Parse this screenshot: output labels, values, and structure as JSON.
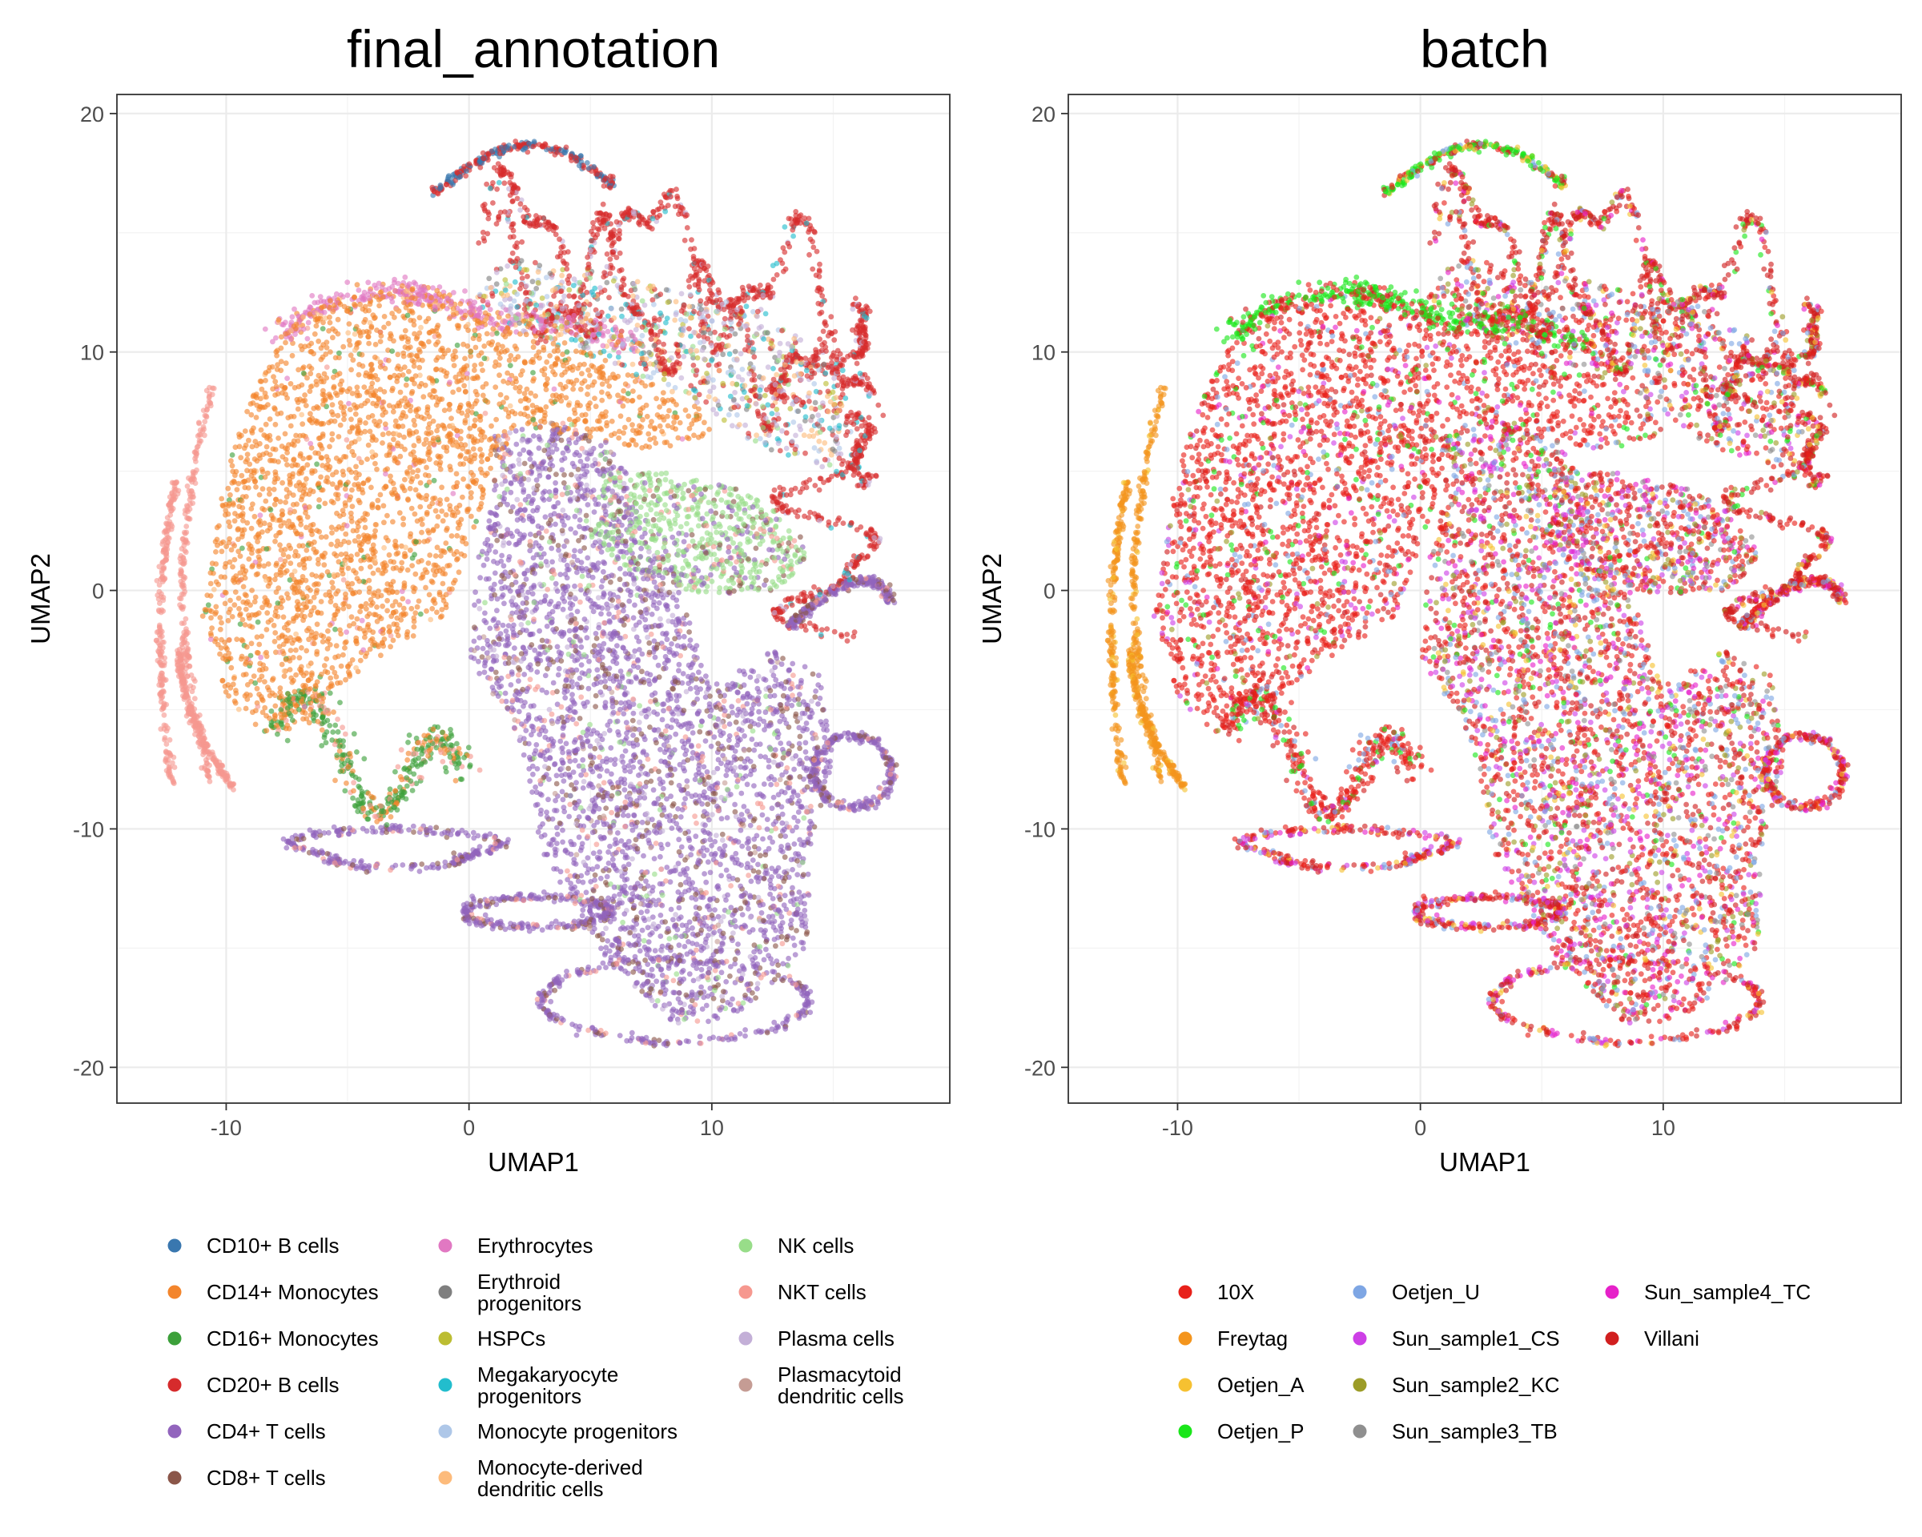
{
  "chart_data": [
    {
      "type": "scatter",
      "title": "final_annotation",
      "xlabel": "UMAP1",
      "ylabel": "UMAP2",
      "xlim": [
        -14.5,
        19.8
      ],
      "ylim": [
        -21.5,
        20.8
      ],
      "xticks": [
        -10,
        0,
        10
      ],
      "yticks": [
        -20,
        -10,
        0,
        10,
        20
      ],
      "grid": true,
      "legend_position": "bottom",
      "legend": [
        {
          "label": "CD10+ B cells",
          "color": "#3977af"
        },
        {
          "label": "CD14+ Monocytes",
          "color": "#f3852c"
        },
        {
          "label": "CD16+ Monocytes",
          "color": "#3ca03a"
        },
        {
          "label": "CD20+ B cells",
          "color": "#d62b2c"
        },
        {
          "label": "CD4+ T cells",
          "color": "#9264bd"
        },
        {
          "label": "CD8+ T cells",
          "color": "#8b5649"
        },
        {
          "label": "Erythrocytes",
          "color": "#e178c2"
        },
        {
          "label": "Erythroid progenitors",
          "color": "#7f7f7f"
        },
        {
          "label": "HSPCs",
          "color": "#bcbd32"
        },
        {
          "label": "Megakaryocyte progenitors",
          "color": "#22bdcd"
        },
        {
          "label": "Monocyte progenitors",
          "color": "#aec7e8"
        },
        {
          "label": "Monocyte-derived dendritic cells",
          "color": "#fdbb7b"
        },
        {
          "label": "NK cells",
          "color": "#98dd89"
        },
        {
          "label": "NKT cells",
          "color": "#f6988f"
        },
        {
          "label": "Plasma cells",
          "color": "#c3afd7"
        },
        {
          "label": "Plasmacytoid dendritic cells",
          "color": "#c59c94"
        }
      ],
      "clusters": [
        {
          "region": "CD14+ monocyte body",
          "x_range": [
            -11,
            3
          ],
          "y_range": [
            -6.5,
            12
          ],
          "dominant": "CD14+ Monocytes"
        },
        {
          "region": "erythrocyte rim",
          "x_range": [
            -9,
            -1
          ],
          "y_range": [
            8,
            12.8
          ],
          "dominant": "Erythrocytes"
        },
        {
          "region": "CD16+ monocyte loop",
          "x_range": [
            -9,
            -0.5
          ],
          "y_range": [
            -8.5,
            -4
          ],
          "dominant": "CD16+ Monocytes"
        },
        {
          "region": "NKT cell streaks",
          "x_range": [
            -13,
            -10.5
          ],
          "y_range": [
            -8,
            8.5
          ],
          "dominant": "NKT cells"
        },
        {
          "region": "B cell loops",
          "x_range": [
            -1.5,
            17
          ],
          "y_range": [
            4,
            18.8
          ],
          "dominant": "CD20+ B cells"
        },
        {
          "region": "CD10+ B cell arc",
          "x_range": [
            0,
            6.5
          ],
          "y_range": [
            15,
            18.8
          ],
          "dominant": "CD10+ B cells"
        },
        {
          "region": "T cell mass",
          "x_range": [
            0,
            15
          ],
          "y_range": [
            -19.5,
            7
          ],
          "dominant": "CD4+ T cells"
        },
        {
          "region": "NK cell lobe",
          "x_range": [
            6,
            14
          ],
          "y_range": [
            0,
            5
          ],
          "dominant": "NK cells"
        }
      ]
    },
    {
      "type": "scatter",
      "title": "batch",
      "xlabel": "UMAP1",
      "ylabel": "UMAP2",
      "xlim": [
        -14.5,
        19.8
      ],
      "ylim": [
        -21.5,
        20.8
      ],
      "xticks": [
        -10,
        0,
        10
      ],
      "yticks": [
        -20,
        -10,
        0,
        10,
        20
      ],
      "grid": true,
      "legend_position": "bottom",
      "legend": [
        {
          "label": "10X",
          "color": "#e8201a"
        },
        {
          "label": "Freytag",
          "color": "#f4951d"
        },
        {
          "label": "Oetjen_A",
          "color": "#f6c131"
        },
        {
          "label": "Oetjen_P",
          "color": "#1ae61a"
        },
        {
          "label": "Oetjen_U",
          "color": "#7ea6e4"
        },
        {
          "label": "Sun_sample1_CS",
          "color": "#cd3fe6"
        },
        {
          "label": "Sun_sample2_KC",
          "color": "#9c9c27"
        },
        {
          "label": "Sun_sample3_TB",
          "color": "#8f8f8f"
        },
        {
          "label": "Sun_sample4_TC",
          "color": "#e621c9"
        },
        {
          "label": "Villani",
          "color": "#d11f1f"
        }
      ],
      "clusters": [
        {
          "region": "monocyte body",
          "x_range": [
            -11,
            3
          ],
          "y_range": [
            -6.5,
            12
          ],
          "dominant": "10X"
        },
        {
          "region": "upper rim",
          "x_range": [
            -9,
            8
          ],
          "y_range": [
            8,
            12.8
          ],
          "dominant": "Oetjen_P"
        },
        {
          "region": "left streaks",
          "x_range": [
            -13,
            -10.5
          ],
          "y_range": [
            -8,
            8.5
          ],
          "dominant": "Freytag"
        },
        {
          "region": "B cell loops",
          "x_range": [
            -1.5,
            17
          ],
          "y_range": [
            4,
            18.8
          ],
          "dominant": "Villani"
        },
        {
          "region": "T cell mass",
          "x_range": [
            0,
            15
          ],
          "y_range": [
            -19.5,
            7
          ],
          "dominant": "mixed"
        }
      ]
    }
  ]
}
